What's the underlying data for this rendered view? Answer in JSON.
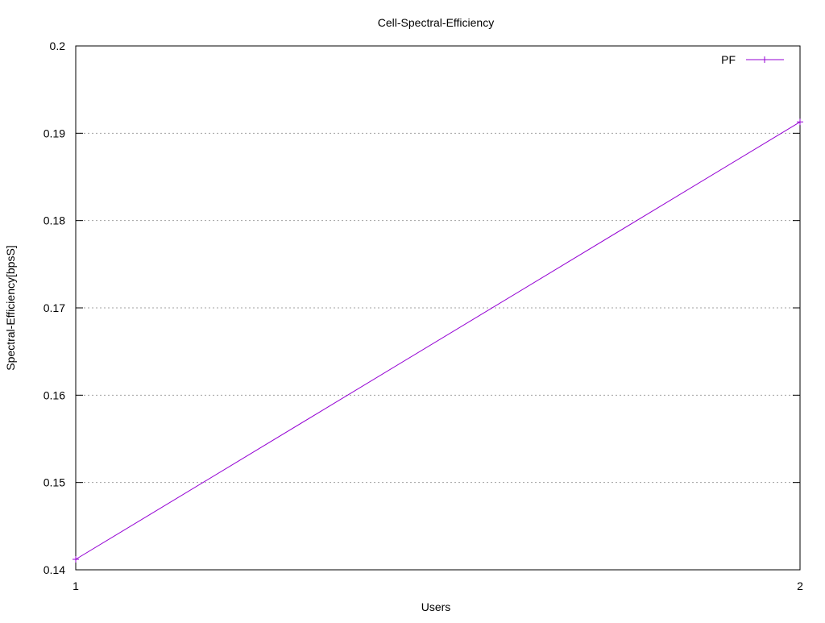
{
  "chart_data": {
    "type": "line",
    "title": "Cell-Spectral-Efficiency",
    "xlabel": "Users",
    "ylabel": "Spectral-Efficiency[bpsS]",
    "xlim": [
      1,
      2
    ],
    "ylim": [
      0.14,
      0.2
    ],
    "x_ticks": [
      "1",
      "2"
    ],
    "y_ticks": [
      "0.14",
      "0.15",
      "0.16",
      "0.17",
      "0.18",
      "0.19",
      "0.2"
    ],
    "grid": "horizontal dotted",
    "legend_position": "top-right",
    "series": [
      {
        "name": "PF",
        "color": "#9400d3",
        "marker": "plus",
        "x": [
          1,
          2
        ],
        "y": [
          0.1412,
          0.1913
        ]
      }
    ]
  }
}
